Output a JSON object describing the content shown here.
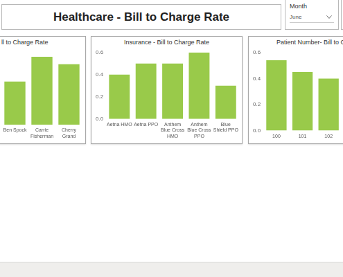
{
  "page": {
    "title": "Healthcare - Bill to Charge Rate",
    "slicer": {
      "label": "Month",
      "value": "June"
    }
  },
  "chart_data": [
    {
      "type": "bar",
      "title": "ll to Charge Rate",
      "categories": [
        "Ben Spock",
        "Carrie Fisherman",
        "Cherry Grand"
      ],
      "values": [
        0.35,
        0.55,
        0.49
      ],
      "color": "#99ca4a",
      "ylim": [
        0,
        0.6
      ],
      "grid": false,
      "tick_labels": "x"
    },
    {
      "type": "bar",
      "title": "Insurance - Bill to Charge Rate",
      "categories": [
        "Aetna HMO",
        "Aetna PPO",
        "Anthem Blue Cross HMO",
        "Anthem Blue Cross PPO",
        "Blue Shield PPO"
      ],
      "values": [
        0.4,
        0.5,
        0.5,
        0.6,
        0.3
      ],
      "color": "#99ca4a",
      "ylim": [
        0,
        0.6
      ],
      "yticks": [
        {
          "value": 0,
          "label": "0.0"
        },
        0.2,
        0.4,
        0.6
      ],
      "grid": false
    },
    {
      "type": "bar",
      "title": "Patient Number- Bill to C",
      "categories": [
        "100",
        "101",
        "102"
      ],
      "values": [
        0.54,
        0.45,
        0.4
      ],
      "color": "#99ca4a",
      "ylim": [
        0,
        0.6
      ],
      "yticks": [
        {
          "value": 0,
          "label": "0.0"
        },
        0.2,
        0.4,
        0.6
      ],
      "grid": false
    }
  ]
}
